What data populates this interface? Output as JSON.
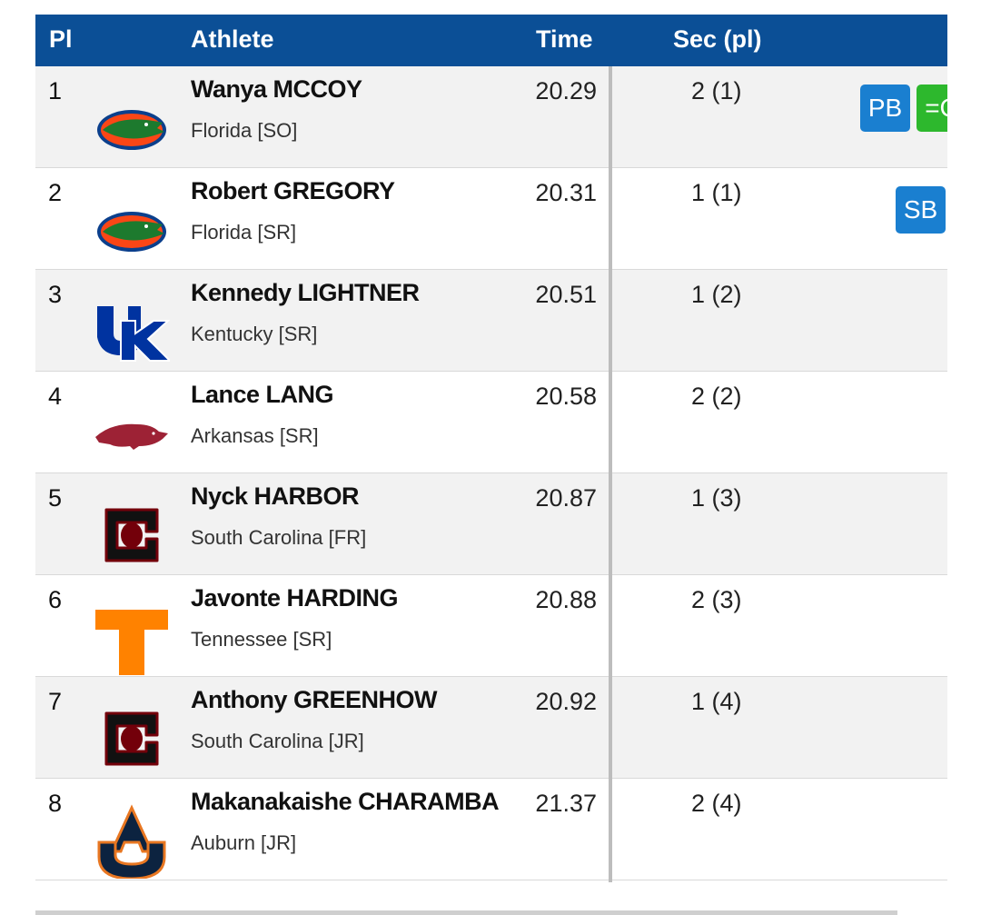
{
  "table": {
    "header": [
      "Pl",
      "Athlete",
      "Time",
      "Sec (pl)"
    ],
    "rows": [
      {
        "place": "1",
        "athlete": "Wanya MCCOY",
        "team": "Florida [SO]",
        "time": "20.29",
        "sec": "2 (1)",
        "badges": [
          "PB",
          "=C"
        ]
      },
      {
        "place": "2",
        "athlete": "Robert GREGORY",
        "team": "Florida [SR]",
        "time": "20.31",
        "sec": "1 (1)",
        "badges": [
          "SB"
        ]
      },
      {
        "place": "3",
        "athlete": "Kennedy LIGHTNER",
        "team": "Kentucky [SR]",
        "time": "20.51",
        "sec": "1 (2)",
        "badges": []
      },
      {
        "place": "4",
        "athlete": "Lance LANG",
        "team": "Arkansas [SR]",
        "time": "20.58",
        "sec": "2 (2)",
        "badges": []
      },
      {
        "place": "5",
        "athlete": "Nyck HARBOR",
        "team": "South Carolina [FR]",
        "time": "20.87",
        "sec": "1 (3)",
        "badges": []
      },
      {
        "place": "6",
        "athlete": "Javonte HARDING",
        "team": "Tennessee [SR]",
        "time": "20.88",
        "sec": "2 (3)",
        "badges": []
      },
      {
        "place": "7",
        "athlete": "Anthony GREENHOW",
        "team": "South Carolina [JR]",
        "time": "20.92",
        "sec": "1 (4)",
        "badges": []
      },
      {
        "place": "8",
        "athlete": "Makanakaishe CHARAMBA",
        "team": "Auburn [JR]",
        "time": "21.37",
        "sec": "2 (4)",
        "badges": []
      }
    ]
  }
}
